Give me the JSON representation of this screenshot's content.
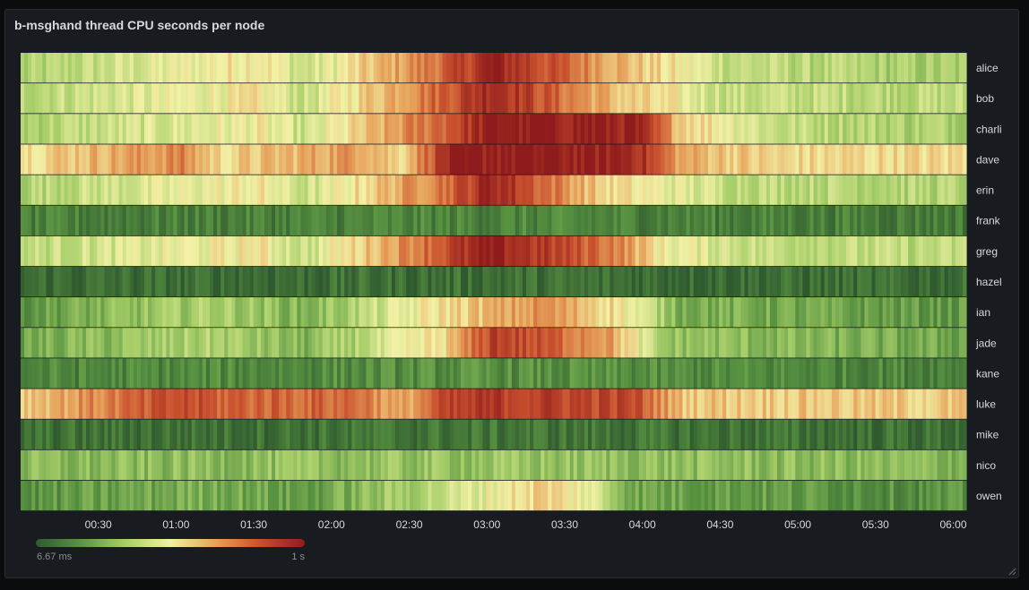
{
  "panel": {
    "title": "b-msghand thread CPU seconds per node"
  },
  "legend": {
    "min_label": "6.67 ms",
    "max_label": "1 s"
  },
  "colors": {
    "scale": [
      "#2f5a2f",
      "#5a9442",
      "#a8cf6a",
      "#f2f1a5",
      "#e6a25a",
      "#c9502e",
      "#8f1c1c"
    ],
    "background": "#181b1f",
    "text": "#d8d9da"
  },
  "chart_data": {
    "type": "heatmap",
    "title": "b-msghand thread CPU seconds per node",
    "x_ticks": [
      "00:30",
      "01:00",
      "01:30",
      "02:00",
      "02:30",
      "03:00",
      "03:30",
      "04:00",
      "04:30",
      "05:00",
      "05:30",
      "06:00"
    ],
    "y_categories": [
      "alice",
      "bob",
      "charlie",
      "dave",
      "erin",
      "frank",
      "greg",
      "hazel",
      "ian",
      "jade",
      "kane",
      "luke",
      "mike",
      "nico",
      "owen"
    ],
    "color_scale": {
      "min": "6.67 ms",
      "max": "1 s",
      "scheme": "green-yellow-red"
    },
    "x_range": [
      "00:00",
      "06:05"
    ],
    "legend_position": "bottom-left",
    "intensity_profile_note_0_to_1": "per-row relative intensity segments over the time axis",
    "rows": [
      {
        "name": "alice",
        "segments": [
          [
            0.0,
            0.33
          ],
          [
            0.25,
            0.55
          ],
          [
            0.3,
            0.4
          ],
          [
            0.45,
            0.8
          ],
          [
            0.5,
            0.98
          ],
          [
            0.65,
            0.6
          ],
          [
            0.75,
            0.4
          ],
          [
            0.95,
            0.33
          ]
        ]
      },
      {
        "name": "bob",
        "segments": [
          [
            0.0,
            0.38
          ],
          [
            0.25,
            0.52
          ],
          [
            0.3,
            0.4
          ],
          [
            0.45,
            0.82
          ],
          [
            0.5,
            0.98
          ],
          [
            0.63,
            0.6
          ],
          [
            0.75,
            0.4
          ],
          [
            0.95,
            0.38
          ]
        ]
      },
      {
        "name": "charlie",
        "segments": [
          [
            0.0,
            0.35
          ],
          [
            0.25,
            0.5
          ],
          [
            0.3,
            0.4
          ],
          [
            0.45,
            0.82
          ],
          [
            0.5,
            1.0
          ],
          [
            0.65,
            0.97
          ],
          [
            0.7,
            0.6
          ],
          [
            0.8,
            0.4
          ],
          [
            0.95,
            0.35
          ]
        ]
      },
      {
        "name": "dave",
        "segments": [
          [
            0.0,
            0.55
          ],
          [
            0.17,
            0.72
          ],
          [
            0.21,
            0.55
          ],
          [
            0.36,
            0.7
          ],
          [
            0.4,
            0.55
          ],
          [
            0.45,
            0.95
          ],
          [
            0.5,
            1.0
          ],
          [
            0.65,
            0.97
          ],
          [
            0.7,
            0.65
          ],
          [
            0.8,
            0.55
          ],
          [
            0.95,
            0.55
          ]
        ]
      },
      {
        "name": "erin",
        "segments": [
          [
            0.0,
            0.36
          ],
          [
            0.25,
            0.52
          ],
          [
            0.3,
            0.4
          ],
          [
            0.45,
            0.78
          ],
          [
            0.5,
            0.98
          ],
          [
            0.62,
            0.55
          ],
          [
            0.75,
            0.4
          ],
          [
            0.95,
            0.36
          ]
        ]
      },
      {
        "name": "frank",
        "segments": [
          [
            0.0,
            0.1
          ],
          [
            0.5,
            0.12
          ],
          [
            1.0,
            0.1
          ]
        ]
      },
      {
        "name": "greg",
        "segments": [
          [
            0.0,
            0.38
          ],
          [
            0.25,
            0.52
          ],
          [
            0.3,
            0.4
          ],
          [
            0.45,
            0.85
          ],
          [
            0.5,
            0.99
          ],
          [
            0.63,
            0.75
          ],
          [
            0.68,
            0.5
          ],
          [
            0.78,
            0.4
          ],
          [
            0.95,
            0.38
          ]
        ]
      },
      {
        "name": "hazel",
        "segments": [
          [
            0.0,
            0.05
          ],
          [
            0.5,
            0.06
          ],
          [
            1.0,
            0.05
          ]
        ]
      },
      {
        "name": "ian",
        "segments": [
          [
            0.0,
            0.18
          ],
          [
            0.2,
            0.35
          ],
          [
            0.3,
            0.25
          ],
          [
            0.45,
            0.55
          ],
          [
            0.55,
            0.7
          ],
          [
            0.63,
            0.55
          ],
          [
            0.7,
            0.25
          ],
          [
            0.95,
            0.18
          ]
        ]
      },
      {
        "name": "jade",
        "segments": [
          [
            0.0,
            0.22
          ],
          [
            0.2,
            0.35
          ],
          [
            0.3,
            0.25
          ],
          [
            0.45,
            0.55
          ],
          [
            0.5,
            0.9
          ],
          [
            0.62,
            0.7
          ],
          [
            0.68,
            0.3
          ],
          [
            0.95,
            0.22
          ]
        ]
      },
      {
        "name": "kane",
        "segments": [
          [
            0.0,
            0.12
          ],
          [
            0.5,
            0.15
          ],
          [
            1.0,
            0.12
          ]
        ]
      },
      {
        "name": "luke",
        "segments": [
          [
            0.0,
            0.6
          ],
          [
            0.17,
            0.85
          ],
          [
            0.21,
            0.8
          ],
          [
            0.36,
            0.78
          ],
          [
            0.4,
            0.62
          ],
          [
            0.45,
            0.85
          ],
          [
            0.5,
            0.9
          ],
          [
            0.65,
            0.85
          ],
          [
            0.7,
            0.6
          ],
          [
            0.95,
            0.58
          ]
        ]
      },
      {
        "name": "mike",
        "segments": [
          [
            0.0,
            0.06
          ],
          [
            0.5,
            0.08
          ],
          [
            1.0,
            0.06
          ]
        ]
      },
      {
        "name": "nico",
        "segments": [
          [
            0.0,
            0.26
          ],
          [
            0.5,
            0.3
          ],
          [
            1.0,
            0.26
          ]
        ]
      },
      {
        "name": "owen",
        "segments": [
          [
            0.0,
            0.15
          ],
          [
            0.2,
            0.25
          ],
          [
            0.3,
            0.18
          ],
          [
            0.45,
            0.4
          ],
          [
            0.55,
            0.58
          ],
          [
            0.6,
            0.48
          ],
          [
            0.65,
            0.22
          ],
          [
            0.95,
            0.15
          ]
        ]
      }
    ]
  }
}
